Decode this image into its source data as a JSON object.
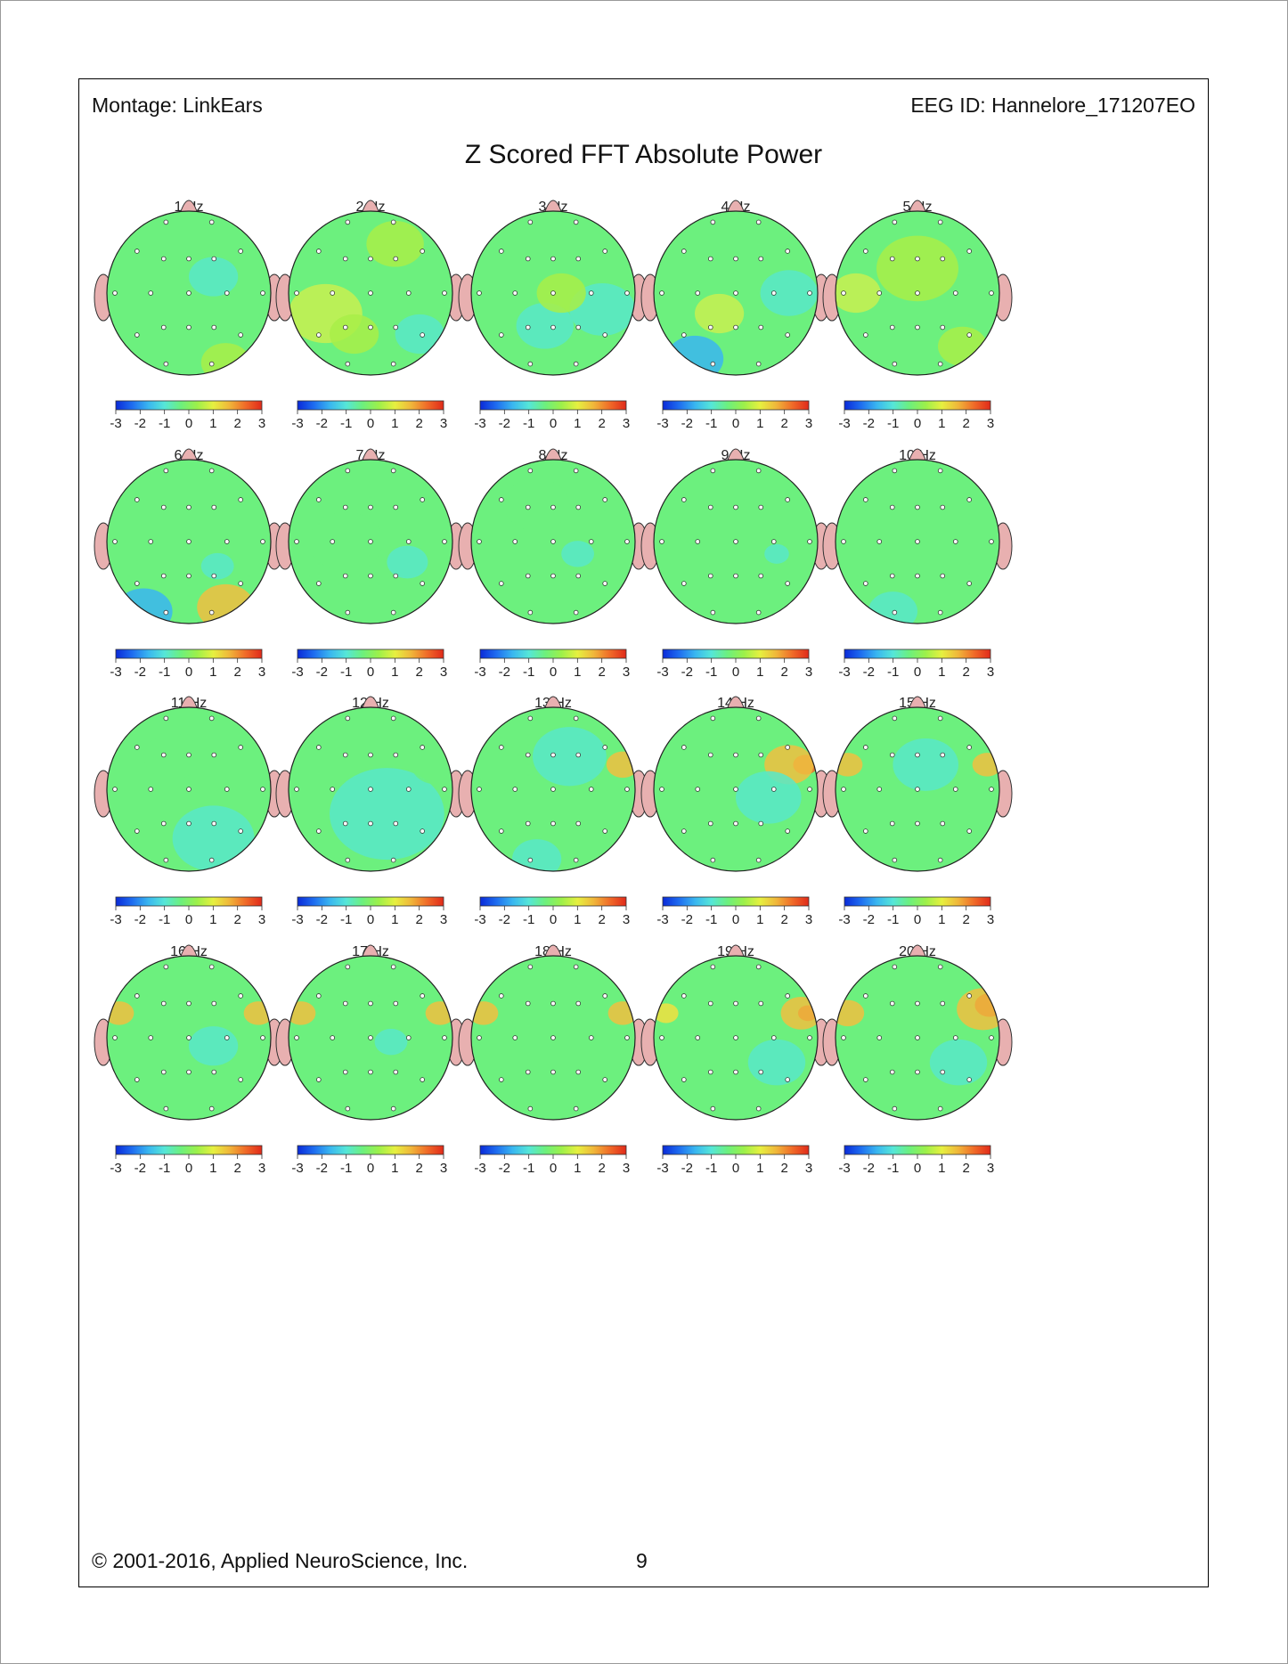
{
  "header": {
    "montage": "Montage:  LinkEars",
    "eeg_id": "EEG ID:  Hannelore_171207EO"
  },
  "title": "Z Scored FFT Absolute Power",
  "footer": {
    "copyright": "© 2001-2016, Applied NeuroScience, Inc.",
    "page_number": "9"
  },
  "colorbar": {
    "ticks": [
      "-3",
      "-2",
      "-1",
      "0",
      "1",
      "2",
      "3"
    ],
    "colors": [
      "#0a2ad8",
      "#1e6cf0",
      "#39b6f0",
      "#55e6d8",
      "#6cf07e",
      "#9cf04a",
      "#e6f040",
      "#f0b63a",
      "#f06a28",
      "#e02a1a"
    ]
  },
  "maps": [
    {
      "label": "1 Hz"
    },
    {
      "label": "2 Hz"
    },
    {
      "label": "3 Hz"
    },
    {
      "label": "4 Hz"
    },
    {
      "label": "5 Hz"
    },
    {
      "label": "6 Hz"
    },
    {
      "label": "7 Hz"
    },
    {
      "label": "8 Hz"
    },
    {
      "label": "9 Hz"
    },
    {
      "label": "10 Hz"
    },
    {
      "label": "11 Hz"
    },
    {
      "label": "12 Hz"
    },
    {
      "label": "13 Hz"
    },
    {
      "label": "14 Hz"
    },
    {
      "label": "15 Hz"
    },
    {
      "label": "16 Hz"
    },
    {
      "label": "17 Hz"
    },
    {
      "label": "18 Hz"
    },
    {
      "label": "19 Hz"
    },
    {
      "label": "20 Hz"
    }
  ]
}
